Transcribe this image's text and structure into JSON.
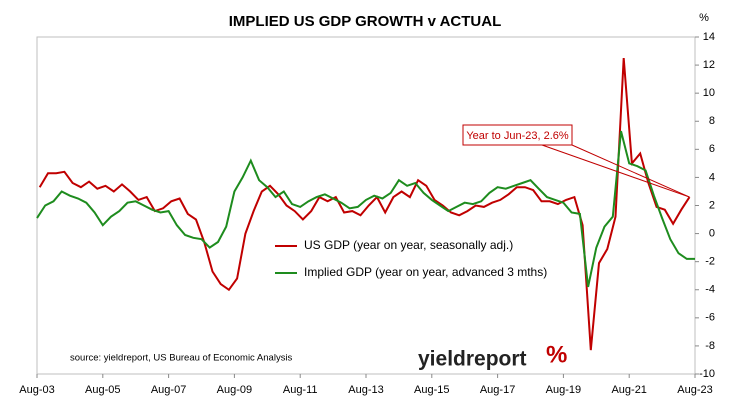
{
  "chart_data": {
    "type": "line",
    "title": "IMPLIED US GDP GROWTH v ACTUAL",
    "y_label": "%",
    "source": "source: yieldreport, US Bureau of Economic Analysis",
    "logo_text": "yieldreport",
    "logo_symbol": "%",
    "annotation": "Year to Jun-23, 2.6%",
    "ylim": [
      -10,
      14
    ],
    "yticks": [
      -10,
      -8,
      -6,
      -4,
      -2,
      0,
      2,
      4,
      6,
      8,
      10,
      12,
      14
    ],
    "xlim": [
      "2003-08",
      "2023-08"
    ],
    "xticks": [
      {
        "value": "2003-08",
        "label": "Aug-03"
      },
      {
        "value": "2005-08",
        "label": "Aug-05"
      },
      {
        "value": "2007-08",
        "label": "Aug-07"
      },
      {
        "value": "2009-08",
        "label": "Aug-09"
      },
      {
        "value": "2011-08",
        "label": "Aug-11"
      },
      {
        "value": "2013-08",
        "label": "Aug-13"
      },
      {
        "value": "2015-08",
        "label": "Aug-15"
      },
      {
        "value": "2017-08",
        "label": "Aug-17"
      },
      {
        "value": "2019-08",
        "label": "Aug-19"
      },
      {
        "value": "2021-08",
        "label": "Aug-21"
      },
      {
        "value": "2023-08",
        "label": "Aug-23"
      }
    ],
    "series": [
      {
        "name": "US GDP (year on year, seasonally adj.)",
        "color": "#c00000",
        "x": [
          "2003-09",
          "2003-12",
          "2004-03",
          "2004-06",
          "2004-09",
          "2004-12",
          "2005-03",
          "2005-06",
          "2005-09",
          "2005-12",
          "2006-03",
          "2006-06",
          "2006-09",
          "2006-12",
          "2007-03",
          "2007-06",
          "2007-09",
          "2007-12",
          "2008-03",
          "2008-06",
          "2008-09",
          "2008-12",
          "2009-03",
          "2009-06",
          "2009-09",
          "2009-12",
          "2010-03",
          "2010-06",
          "2010-09",
          "2010-12",
          "2011-03",
          "2011-06",
          "2011-09",
          "2011-12",
          "2012-03",
          "2012-06",
          "2012-09",
          "2012-12",
          "2013-03",
          "2013-06",
          "2013-09",
          "2013-12",
          "2014-03",
          "2014-06",
          "2014-09",
          "2014-12",
          "2015-03",
          "2015-06",
          "2015-09",
          "2015-12",
          "2016-03",
          "2016-06",
          "2016-09",
          "2016-12",
          "2017-03",
          "2017-06",
          "2017-09",
          "2017-12",
          "2018-03",
          "2018-06",
          "2018-09",
          "2018-12",
          "2019-03",
          "2019-06",
          "2019-09",
          "2019-12",
          "2020-03",
          "2020-06",
          "2020-09",
          "2020-12",
          "2021-03",
          "2021-06",
          "2021-09",
          "2021-12",
          "2022-03",
          "2022-06",
          "2022-09",
          "2022-12",
          "2023-03",
          "2023-06"
        ],
        "values": [
          3.3,
          4.3,
          4.3,
          4.4,
          3.6,
          3.3,
          3.7,
          3.2,
          3.4,
          3.0,
          3.5,
          3.0,
          2.4,
          2.6,
          1.6,
          1.8,
          2.3,
          2.5,
          1.4,
          1.0,
          -0.6,
          -2.7,
          -3.6,
          -4.0,
          -3.2,
          0.0,
          1.6,
          3.0,
          3.4,
          2.8,
          2.0,
          1.6,
          1.0,
          1.6,
          2.6,
          2.3,
          2.6,
          1.5,
          1.6,
          1.3,
          2.0,
          2.6,
          1.5,
          2.6,
          3.0,
          2.6,
          3.8,
          3.4,
          2.4,
          2.0,
          1.5,
          1.3,
          1.6,
          2.0,
          1.9,
          2.2,
          2.4,
          2.8,
          3.3,
          3.3,
          3.1,
          2.3,
          2.3,
          2.1,
          2.4,
          2.6,
          0.6,
          -8.3,
          -2.1,
          -1.1,
          1.2,
          12.5,
          5.0,
          5.7,
          3.6,
          1.9,
          1.7,
          0.7,
          1.7,
          2.6
        ]
      },
      {
        "name": "Implied GDP (year on year, advanced 3 mths)",
        "color": "#1e8c1e",
        "x": [
          "2003-08",
          "2003-11",
          "2004-02",
          "2004-05",
          "2004-08",
          "2004-11",
          "2005-02",
          "2005-05",
          "2005-08",
          "2005-11",
          "2006-02",
          "2006-05",
          "2006-08",
          "2006-11",
          "2007-02",
          "2007-05",
          "2007-08",
          "2007-11",
          "2008-02",
          "2008-05",
          "2008-08",
          "2008-11",
          "2009-02",
          "2009-05",
          "2009-08",
          "2009-11",
          "2010-02",
          "2010-05",
          "2010-08",
          "2010-11",
          "2011-02",
          "2011-05",
          "2011-08",
          "2011-11",
          "2012-02",
          "2012-05",
          "2012-08",
          "2012-11",
          "2013-02",
          "2013-05",
          "2013-08",
          "2013-11",
          "2014-02",
          "2014-05",
          "2014-08",
          "2014-11",
          "2015-02",
          "2015-05",
          "2015-08",
          "2015-11",
          "2016-02",
          "2016-05",
          "2016-08",
          "2016-11",
          "2017-02",
          "2017-05",
          "2017-08",
          "2017-11",
          "2018-02",
          "2018-05",
          "2018-08",
          "2018-11",
          "2019-02",
          "2019-05",
          "2019-08",
          "2019-11",
          "2020-02",
          "2020-05",
          "2020-08",
          "2020-11",
          "2021-02",
          "2021-05",
          "2021-08",
          "2021-11",
          "2022-02",
          "2022-05",
          "2022-08",
          "2022-11",
          "2023-02",
          "2023-05",
          "2023-08"
        ],
        "values": [
          1.1,
          2.0,
          2.3,
          3.0,
          2.7,
          2.5,
          2.2,
          1.5,
          0.6,
          1.2,
          1.6,
          2.2,
          2.3,
          2.0,
          1.7,
          1.5,
          1.6,
          0.6,
          -0.1,
          -0.3,
          -0.4,
          -1.0,
          -0.6,
          0.5,
          3.0,
          4.0,
          5.2,
          3.8,
          3.3,
          2.6,
          3.0,
          2.1,
          1.9,
          2.3,
          2.6,
          2.8,
          2.5,
          2.2,
          1.8,
          1.9,
          2.4,
          2.7,
          2.5,
          2.9,
          3.8,
          3.4,
          3.6,
          2.9,
          2.4,
          2.0,
          1.6,
          1.9,
          2.2,
          2.1,
          2.3,
          2.9,
          3.3,
          3.2,
          3.4,
          3.6,
          3.8,
          3.2,
          2.6,
          2.4,
          2.2,
          1.5,
          1.4,
          -3.8,
          -1.0,
          0.5,
          1.2,
          7.3,
          5.0,
          4.8,
          4.5,
          2.7,
          1.1,
          -0.4,
          -1.4,
          -1.8,
          -1.8
        ]
      }
    ]
  }
}
